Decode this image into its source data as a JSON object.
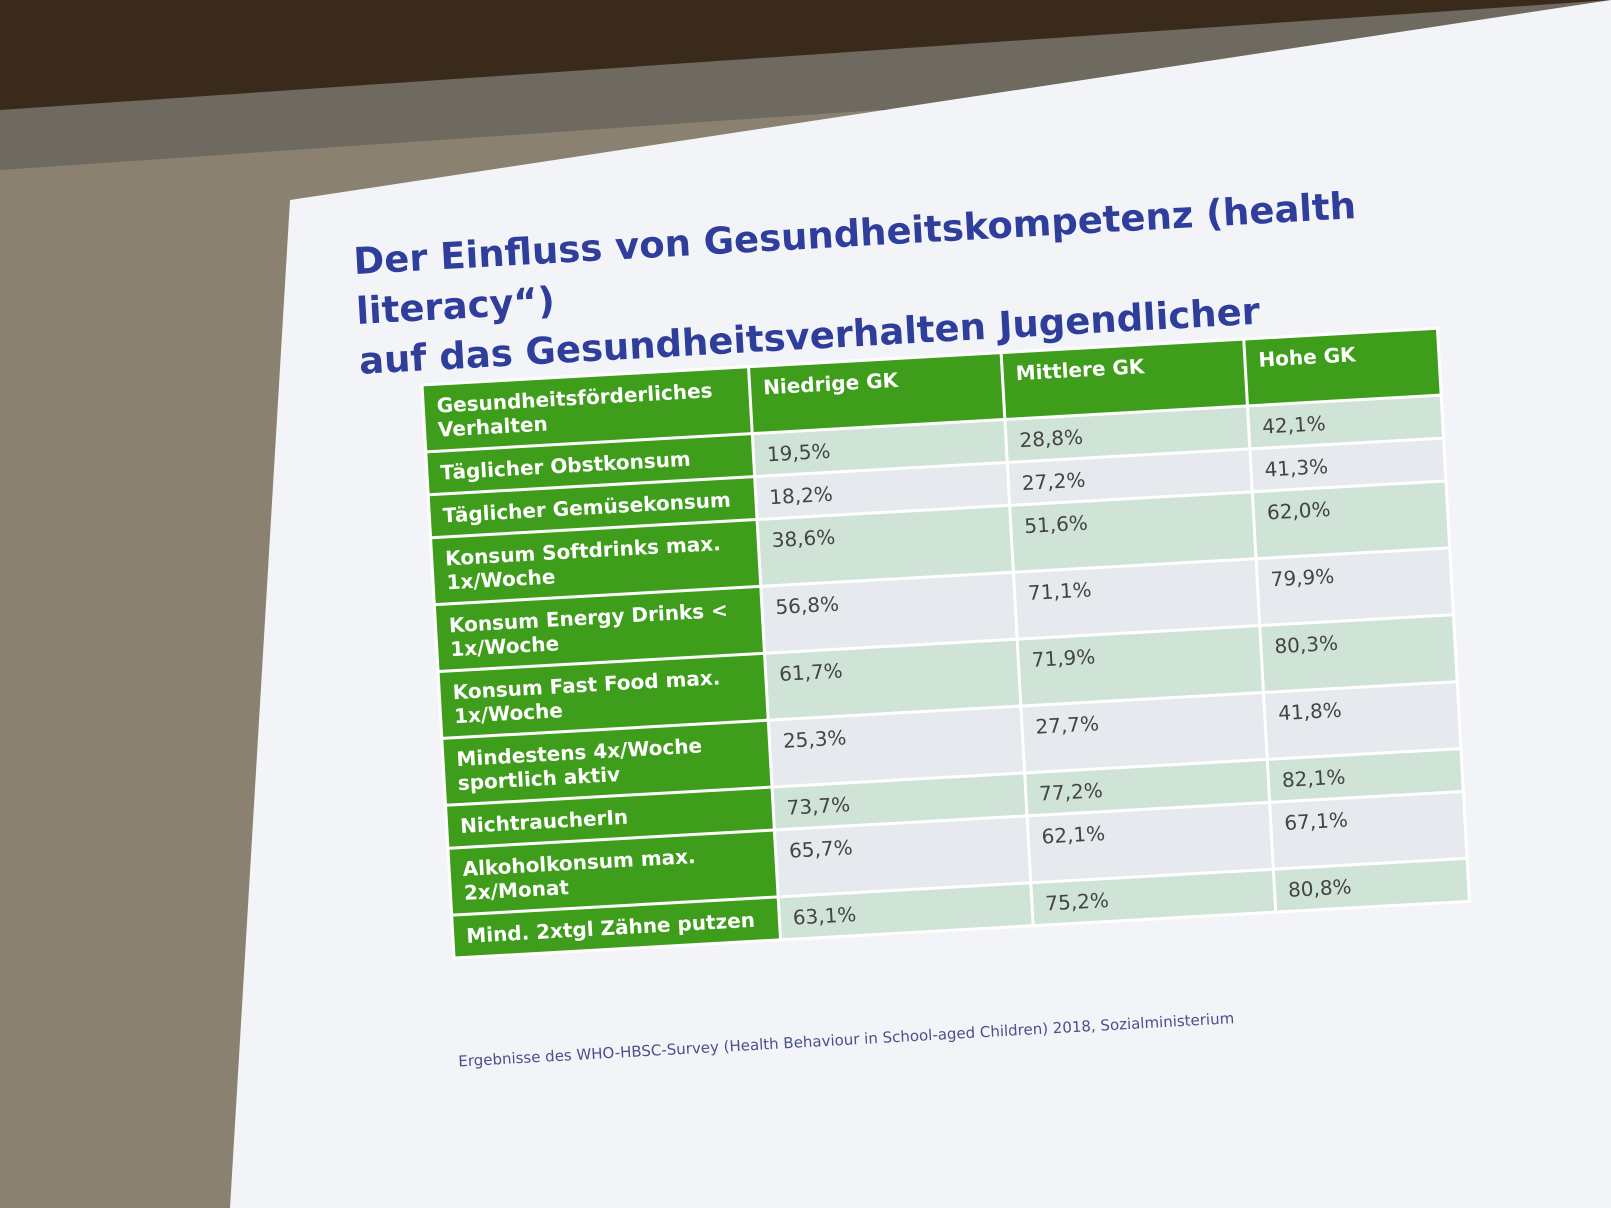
{
  "title": {
    "lines": [
      "Der Einfluss von Gesundheitskompetenz (health literacy“)",
      "auf das Gesundheitsverhalten Jugendlicher"
    ]
  },
  "table": {
    "header": [
      "Gesundheitsförderliches Verhalten",
      "Niedrige GK",
      "Mittlere GK",
      "Hohe GK"
    ],
    "rows": [
      [
        "Täglicher Obstkonsum",
        "19,5%",
        "28,8%",
        "42,1%"
      ],
      [
        "Täglicher Gemüsekonsum",
        "18,2%",
        "27,2%",
        "41,3%"
      ],
      [
        "Konsum Softdrinks max. 1x/Woche",
        "38,6%",
        "51,6%",
        "62,0%"
      ],
      [
        "Konsum Energy Drinks < 1x/Woche",
        "56,8%",
        "71,1%",
        "79,9%"
      ],
      [
        "Konsum Fast Food max. 1x/Woche",
        "61,7%",
        "71,9%",
        "80,3%"
      ],
      [
        "Mindestens 4x/Woche sportlich aktiv",
        "25,3%",
        "27,7%",
        "41,8%"
      ],
      [
        "NichtraucherIn",
        "73,7%",
        "77,2%",
        "82,1%"
      ],
      [
        "Alkoholkonsum max. 2x/Monat",
        "65,7%",
        "62,1%",
        "67,1%"
      ],
      [
        "Mind. 2xtgl Zähne putzen",
        "63,1%",
        "75,2%",
        "80,8%"
      ]
    ]
  },
  "source": "Ergebnisse des WHO-HBSC-Survey (Health Behaviour in School-aged Children) 2018, Sozialministerium"
}
